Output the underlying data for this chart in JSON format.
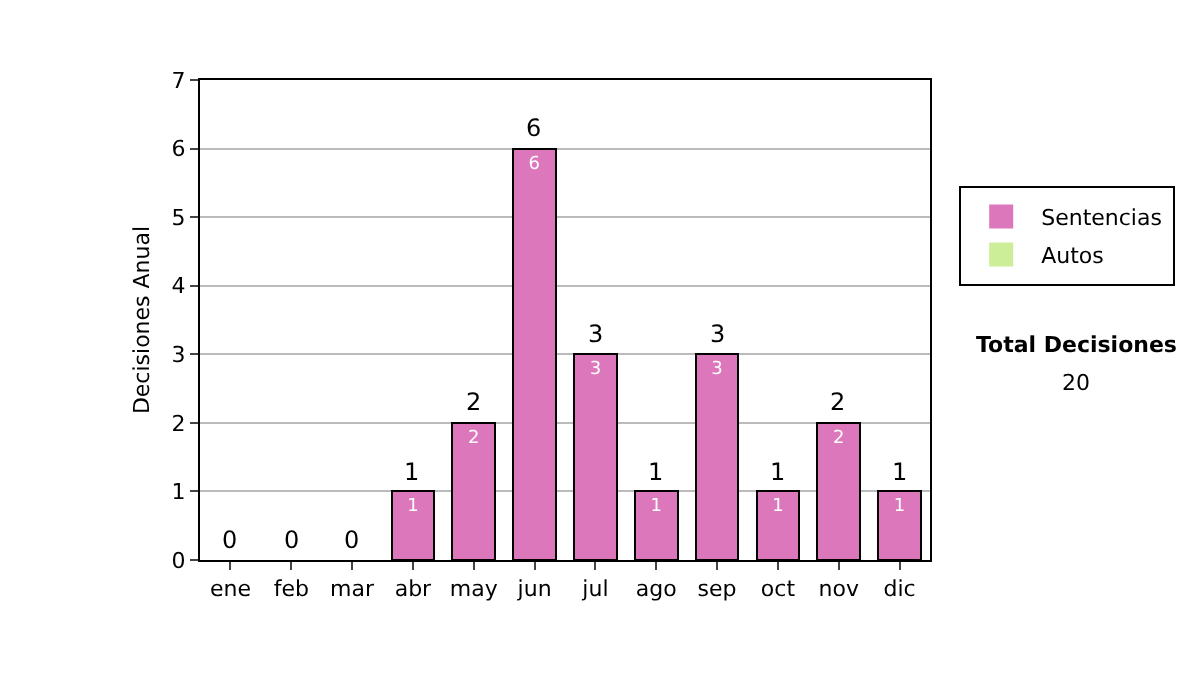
{
  "chart_data": {
    "type": "bar",
    "ylabel": "Decisiones Anual",
    "categories": [
      "ene",
      "feb",
      "mar",
      "abr",
      "may",
      "jun",
      "jul",
      "ago",
      "sep",
      "oct",
      "nov",
      "dic"
    ],
    "series": [
      {
        "name": "Sentencias",
        "color": "#dd77bb",
        "values": [
          0,
          0,
          0,
          1,
          2,
          6,
          3,
          1,
          3,
          1,
          2,
          1
        ],
        "value_labels": [
          null,
          null,
          null,
          "1",
          "2",
          "6",
          "3",
          "1",
          "3",
          "1",
          "2",
          "1"
        ]
      },
      {
        "name": "Autos",
        "color": "#ccee99",
        "values": [
          0,
          0,
          0,
          0,
          0,
          0,
          0,
          0,
          0,
          0,
          0,
          0
        ]
      }
    ],
    "stacked": true,
    "totals": [
      "0",
      "0",
      "0",
      "1",
      "2",
      "6",
      "3",
      "1",
      "3",
      "1",
      "2",
      "1"
    ],
    "ylim": [
      0,
      7
    ],
    "yticks": [
      0,
      1,
      2,
      3,
      4,
      5,
      6,
      7
    ],
    "grid": "y",
    "legend": "right",
    "annotations": [
      "Total Decisiones",
      "20"
    ]
  }
}
